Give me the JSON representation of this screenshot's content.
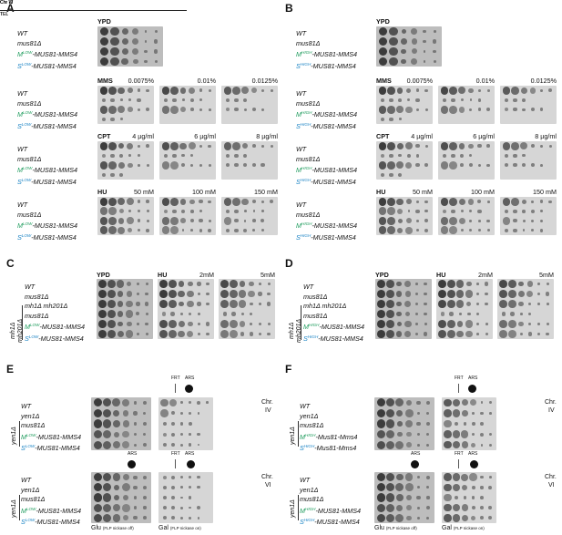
{
  "panels": {
    "A": "A",
    "B": "B",
    "C": "C",
    "D": "D",
    "E": "E",
    "F": "F"
  },
  "strains": {
    "wt": "WT",
    "mus81": "mus81Δ",
    "m_prefix": "M",
    "s_prefix": "S",
    "low": "LOW",
    "high": "HIGH",
    "suffix": "-MUS81-MMS4",
    "suffix_lower": "-Mus81-Mms4",
    "mh1": "mh1Δ mh201Δ",
    "mh1_short": "mh1Δ",
    "mh201": "mh201Δ",
    "yen1": "yen1Δ"
  },
  "conditions": {
    "ypd": "YPD",
    "mms": "MMS",
    "mms_doses": [
      "0.0075%",
      "0.01%",
      "0.0125%"
    ],
    "cpt": "CPT",
    "cpt_doses": [
      "4 µg/ml",
      "6 µg/ml",
      "8 µg/ml"
    ],
    "hu": "HU",
    "hu_doses": [
      "50 mM",
      "100 mM",
      "150 mM"
    ],
    "hu_cd": [
      "2mM",
      "5mM"
    ]
  },
  "ef": {
    "chr4": "Chr IV",
    "chr6": "Chr VI",
    "tel": "TEL",
    "frt": "FRT",
    "ars": "ARS",
    "chr_label_4a": "Chr.",
    "chr_label_4b": "IV",
    "chr_label_6a": "Chr.",
    "chr_label_6b": "VI",
    "glu": "Glu",
    "glu_note": "(FLP nickase off)",
    "gal": "Gal",
    "gal_note": "(FLP nickase on)"
  }
}
